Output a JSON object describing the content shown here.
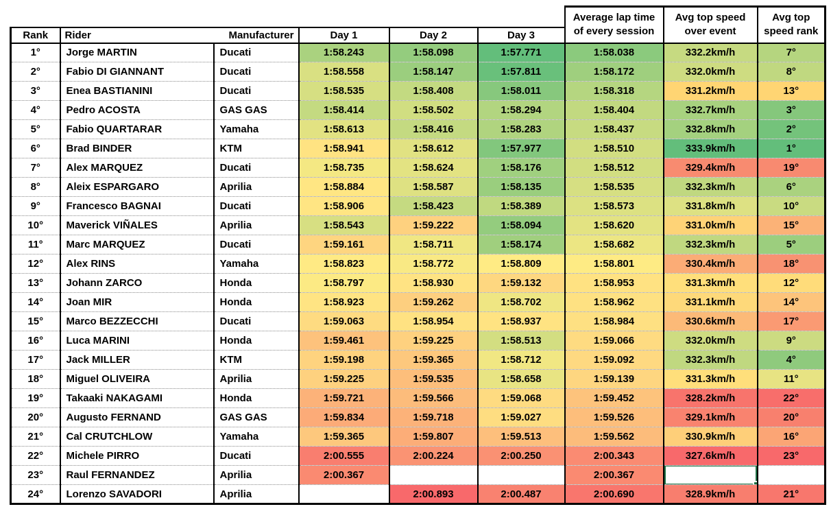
{
  "columns": {
    "rank": "Rank",
    "rider": "Rider",
    "manufacturer": "Manufacturer",
    "days": [
      "Day 1",
      "Day 2",
      "Day 3"
    ],
    "avg_lap": [
      "Average lap time",
      "of every session"
    ],
    "avg_speed": [
      "Avg top speed",
      "over event"
    ],
    "avg_speed_rank": [
      "Avg top",
      "speed rank"
    ]
  },
  "selection": {
    "border_color": "#1F7245"
  },
  "heatmap_anchors": {
    "green": "#63BE7B",
    "yellow": "#FFEB84",
    "red": "#F8696B"
  },
  "rows": [
    {
      "rank": "1°",
      "rider": "Jorge MARTIN",
      "manufacturer": "Ducati",
      "laps": [
        {
          "t": "1:58.243",
          "c": "#AAD27F"
        },
        {
          "t": "1:58.098",
          "c": "#94CC7E"
        },
        {
          "t": "1:57.771",
          "c": "#63BE7B"
        },
        {
          "t": "1:58.038",
          "c": "#8BCA7D"
        }
      ],
      "speed": {
        "t": "332.2km/h",
        "c": "#C6DA81"
      },
      "speed_rank": {
        "t": "7°",
        "c": "#B5D57F"
      }
    },
    {
      "rank": "2°",
      "rider": "Fabio DI GIANNANT",
      "manufacturer": "Ducati",
      "laps": [
        {
          "t": "1:58.558",
          "c": "#D9E082"
        },
        {
          "t": "1:58.147",
          "c": "#9BCE7E"
        },
        {
          "t": "1:57.811",
          "c": "#69C07B"
        },
        {
          "t": "1:58.172",
          "c": "#9FCF7E"
        }
      ],
      "speed": {
        "t": "332.0km/h",
        "c": "#CEDC81"
      },
      "speed_rank": {
        "t": "8°",
        "c": "#C0D880"
      }
    },
    {
      "rank": "3°",
      "rider": "Enea BASTIANINI",
      "manufacturer": "Ducati",
      "laps": [
        {
          "t": "1:58.535",
          "c": "#D6DF82"
        },
        {
          "t": "1:58.408",
          "c": "#C3DA81"
        },
        {
          "t": "1:58.011",
          "c": "#87C87D"
        },
        {
          "t": "1:58.318",
          "c": "#B5D680"
        }
      ],
      "speed": {
        "t": "331.2km/h",
        "c": "#FFD573"
      },
      "speed_rank": {
        "t": "13°",
        "c": "#FFD573"
      }
    },
    {
      "rank": "4°",
      "rider": "Pedro ACOSTA",
      "manufacturer": "GAS GAS",
      "laps": [
        {
          "t": "1:58.414",
          "c": "#C4DA81"
        },
        {
          "t": "1:58.502",
          "c": "#D1DE81"
        },
        {
          "t": "1:58.294",
          "c": "#B2D580"
        },
        {
          "t": "1:58.404",
          "c": "#C2D980"
        }
      ],
      "speed": {
        "t": "332.7km/h",
        "c": "#A8D27F"
      },
      "speed_rank": {
        "t": "3°",
        "c": "#85C77C"
      }
    },
    {
      "rank": "5°",
      "rider": "Fabio QUARTARAR",
      "manufacturer": "Yamaha",
      "laps": [
        {
          "t": "1:58.613",
          "c": "#E2E282"
        },
        {
          "t": "1:58.416",
          "c": "#C4DA81"
        },
        {
          "t": "1:58.283",
          "c": "#B0D47F"
        },
        {
          "t": "1:58.437",
          "c": "#C7DB81"
        }
      ],
      "speed": {
        "t": "332.8km/h",
        "c": "#A4D17F"
      },
      "speed_rank": {
        "t": "2°",
        "c": "#74C37B"
      }
    },
    {
      "rank": "6°",
      "rider": "Brad BINDER",
      "manufacturer": "KTM",
      "laps": [
        {
          "t": "1:58.941",
          "c": "#FFE382"
        },
        {
          "t": "1:58.612",
          "c": "#E1E282"
        },
        {
          "t": "1:57.977",
          "c": "#82C77D"
        },
        {
          "t": "1:58.510",
          "c": "#D2DE81"
        }
      ],
      "speed": {
        "t": "333.9km/h",
        "c": "#63BE7B"
      },
      "speed_rank": {
        "t": "1°",
        "c": "#63BE7B"
      }
    },
    {
      "rank": "7°",
      "rider": "Alex MARQUEZ",
      "manufacturer": "Ducati",
      "laps": [
        {
          "t": "1:58.735",
          "c": "#F4E883"
        },
        {
          "t": "1:58.624",
          "c": "#E3E382"
        },
        {
          "t": "1:58.176",
          "c": "#A0D07F"
        },
        {
          "t": "1:58.512",
          "c": "#D2DE81"
        }
      ],
      "speed": {
        "t": "329.4km/h",
        "c": "#F88B70"
      },
      "speed_rank": {
        "t": "19°",
        "c": "#F88A70"
      }
    },
    {
      "rank": "8°",
      "rider": "Aleix ESPARGARO",
      "manufacturer": "Aprilia",
      "laps": [
        {
          "t": "1:58.884",
          "c": "#FFE683"
        },
        {
          "t": "1:58.587",
          "c": "#DEE182"
        },
        {
          "t": "1:58.135",
          "c": "#9ACE7E"
        },
        {
          "t": "1:58.535",
          "c": "#D6DF82"
        }
      ],
      "speed": {
        "t": "332.3km/h",
        "c": "#C0D880"
      },
      "speed_rank": {
        "t": "6°",
        "c": "#AAD27F"
      }
    },
    {
      "rank": "9°",
      "rider": "Francesco BAGNAI",
      "manufacturer": "Ducati",
      "laps": [
        {
          "t": "1:58.906",
          "c": "#FFE583"
        },
        {
          "t": "1:58.423",
          "c": "#C5DA81"
        },
        {
          "t": "1:58.389",
          "c": "#C0D980"
        },
        {
          "t": "1:58.573",
          "c": "#DCE182"
        }
      ],
      "speed": {
        "t": "331.8km/h",
        "c": "#DDE183"
      },
      "speed_rank": {
        "t": "10°",
        "c": "#C9DB81"
      }
    },
    {
      "rank": "10°",
      "rider": "Maverick VIÑALES",
      "manufacturer": "Aprilia",
      "laps": [
        {
          "t": "1:58.543",
          "c": "#D7DF82"
        },
        {
          "t": "1:59.222",
          "c": "#FED17F"
        },
        {
          "t": "1:58.094",
          "c": "#94CC7E"
        },
        {
          "t": "1:58.620",
          "c": "#E3E382"
        }
      ],
      "speed": {
        "t": "331.0km/h",
        "c": "#FED377"
      },
      "speed_rank": {
        "t": "15°",
        "c": "#FBB277"
      }
    },
    {
      "rank": "11°",
      "rider": "Marc MARQUEZ",
      "manufacturer": "Ducati",
      "laps": [
        {
          "t": "1:59.161",
          "c": "#FED580"
        },
        {
          "t": "1:58.711",
          "c": "#F0E783"
        },
        {
          "t": "1:58.174",
          "c": "#A0CF7E"
        },
        {
          "t": "1:58.682",
          "c": "#ECE683"
        }
      ],
      "speed": {
        "t": "332.3km/h",
        "c": "#C0D880"
      },
      "speed_rank": {
        "t": "5°",
        "c": "#9CCE7E"
      }
    },
    {
      "rank": "12°",
      "rider": "Alex RINS",
      "manufacturer": "Yamaha",
      "laps": [
        {
          "t": "1:58.823",
          "c": "#FFEA84"
        },
        {
          "t": "1:58.772",
          "c": "#F9E984"
        },
        {
          "t": "1:58.809",
          "c": "#FFEB84"
        },
        {
          "t": "1:58.801",
          "c": "#FEEB84"
        }
      ],
      "speed": {
        "t": "330.4km/h",
        "c": "#FBAC76"
      },
      "speed_rank": {
        "t": "18°",
        "c": "#F89272"
      }
    },
    {
      "rank": "13°",
      "rider": "Johann ZARCO",
      "manufacturer": "Honda",
      "laps": [
        {
          "t": "1:58.797",
          "c": "#FCEA84"
        },
        {
          "t": "1:58.930",
          "c": "#FFE383"
        },
        {
          "t": "1:59.132",
          "c": "#FED780"
        },
        {
          "t": "1:58.953",
          "c": "#FFE282"
        }
      ],
      "speed": {
        "t": "331.3km/h",
        "c": "#FFDF7B"
      },
      "speed_rank": {
        "t": "12°",
        "c": "#FFDC7A"
      }
    },
    {
      "rank": "14°",
      "rider": "Joan MIR",
      "manufacturer": "Honda",
      "laps": [
        {
          "t": "1:58.923",
          "c": "#FFE483"
        },
        {
          "t": "1:59.262",
          "c": "#FDCF7F"
        },
        {
          "t": "1:58.702",
          "c": "#EFE683"
        },
        {
          "t": "1:58.962",
          "c": "#FEE182"
        }
      ],
      "speed": {
        "t": "331.1km/h",
        "c": "#FED97A"
      },
      "speed_rank": {
        "t": "14°",
        "c": "#FDC47B"
      }
    },
    {
      "rank": "15°",
      "rider": "Marco BEZZECCHI",
      "manufacturer": "Ducati",
      "laps": [
        {
          "t": "1:59.063",
          "c": "#FEDB81"
        },
        {
          "t": "1:58.954",
          "c": "#FFE282"
        },
        {
          "t": "1:58.937",
          "c": "#FFE382"
        },
        {
          "t": "1:58.984",
          "c": "#FEE082"
        }
      ],
      "speed": {
        "t": "330.6km/h",
        "c": "#FCBA78"
      },
      "speed_rank": {
        "t": "17°",
        "c": "#FA9A73"
      }
    },
    {
      "rank": "16°",
      "rider": "Luca MARINI",
      "manufacturer": "Honda",
      "laps": [
        {
          "t": "1:59.461",
          "c": "#FDC27C"
        },
        {
          "t": "1:59.225",
          "c": "#FED17F"
        },
        {
          "t": "1:58.513",
          "c": "#D3DE81"
        },
        {
          "t": "1:59.066",
          "c": "#FEDB81"
        }
      ],
      "speed": {
        "t": "332.0km/h",
        "c": "#CEDC81"
      },
      "speed_rank": {
        "t": "9°",
        "c": "#CCDB81"
      }
    },
    {
      "rank": "17°",
      "rider": "Jack MILLER",
      "manufacturer": "KTM",
      "laps": [
        {
          "t": "1:59.198",
          "c": "#FED37F"
        },
        {
          "t": "1:59.365",
          "c": "#FDC87D"
        },
        {
          "t": "1:58.712",
          "c": "#F1E783"
        },
        {
          "t": "1:59.092",
          "c": "#FED981"
        }
      ],
      "speed": {
        "t": "332.3km/h",
        "c": "#C0D880"
      },
      "speed_rank": {
        "t": "4°",
        "c": "#8FCA7D"
      }
    },
    {
      "rank": "18°",
      "rider": "Miguel OLIVEIRA",
      "manufacturer": "Aprilia",
      "laps": [
        {
          "t": "1:59.225",
          "c": "#FED17F"
        },
        {
          "t": "1:59.535",
          "c": "#FDBE7B"
        },
        {
          "t": "1:58.658",
          "c": "#E8E483"
        },
        {
          "t": "1:59.139",
          "c": "#FED680"
        }
      ],
      "speed": {
        "t": "331.3km/h",
        "c": "#FFDF7B"
      },
      "speed_rank": {
        "t": "11°",
        "c": "#E7E383"
      }
    },
    {
      "rank": "19°",
      "rider": "Takaaki NAKAGAMI",
      "manufacturer": "Honda",
      "laps": [
        {
          "t": "1:59.721",
          "c": "#FCB279"
        },
        {
          "t": "1:59.566",
          "c": "#FCBC7B"
        },
        {
          "t": "1:59.068",
          "c": "#FEDB81"
        },
        {
          "t": "1:59.452",
          "c": "#FDC37C"
        }
      ],
      "speed": {
        "t": "328.2km/h",
        "c": "#F8746C"
      },
      "speed_rank": {
        "t": "22°",
        "c": "#F86E6B"
      }
    },
    {
      "rank": "20°",
      "rider": "Augusto FERNAND",
      "manufacturer": "GAS GAS",
      "laps": [
        {
          "t": "1:59.834",
          "c": "#FCAB78"
        },
        {
          "t": "1:59.718",
          "c": "#FCB279"
        },
        {
          "t": "1:59.027",
          "c": "#FEDD81"
        },
        {
          "t": "1:59.526",
          "c": "#FDBE7B"
        }
      ],
      "speed": {
        "t": "329.1km/h",
        "c": "#F9836F"
      },
      "speed_rank": {
        "t": "20°",
        "c": "#F8806E"
      }
    },
    {
      "rank": "21°",
      "rider": "Cal CRUTCHLOW",
      "manufacturer": "Yamaha",
      "laps": [
        {
          "t": "1:59.365",
          "c": "#FDC87D"
        },
        {
          "t": "1:59.807",
          "c": "#FCAD78"
        },
        {
          "t": "1:59.513",
          "c": "#FDBF7C"
        },
        {
          "t": "1:59.562",
          "c": "#FCBC7B"
        }
      ],
      "speed": {
        "t": "330.9km/h",
        "c": "#FECF79"
      },
      "speed_rank": {
        "t": "16°",
        "c": "#FBA575"
      }
    },
    {
      "rank": "22°",
      "rider": "Michele PIRRO",
      "manufacturer": "Ducati",
      "laps": [
        {
          "t": "2:00.555",
          "c": "#F97E6F"
        },
        {
          "t": "2:00.224",
          "c": "#FA9373"
        },
        {
          "t": "2:00.250",
          "c": "#FA9173"
        },
        {
          "t": "2:00.343",
          "c": "#FA8B72"
        }
      ],
      "speed": {
        "t": "327.6km/h",
        "c": "#F8696B"
      },
      "speed_rank": {
        "t": "23°",
        "c": "#F8696B"
      }
    },
    {
      "rank": "23°",
      "rider": "Raul FERNANDEZ",
      "manufacturer": "Aprilia",
      "laps": [
        {
          "t": "2:00.367",
          "c": "#FA8A71"
        },
        {
          "t": "",
          "c": ""
        },
        {
          "t": "",
          "c": ""
        },
        {
          "t": "2:00.367",
          "c": "#FA8A71"
        }
      ],
      "speed": {
        "t": "",
        "c": "",
        "selected": true
      },
      "speed_rank": {
        "t": "",
        "c": ""
      }
    },
    {
      "rank": "24°",
      "rider": "Lorenzo SAVADORI",
      "manufacturer": "Aprilia",
      "laps": [
        {
          "t": "",
          "c": ""
        },
        {
          "t": "2:00.893",
          "c": "#F8696B"
        },
        {
          "t": "2:00.487",
          "c": "#F98270"
        },
        {
          "t": "2:00.690",
          "c": "#F9766D"
        }
      ],
      "speed": {
        "t": "328.9km/h",
        "c": "#F87E6E"
      },
      "speed_rank": {
        "t": "21°",
        "c": "#F8776D"
      }
    }
  ]
}
